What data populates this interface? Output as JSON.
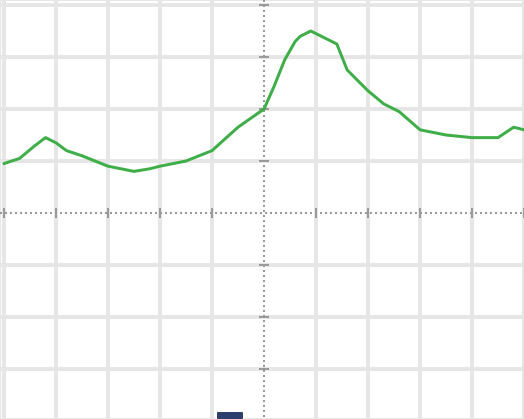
{
  "colors": {
    "background": "#ffffff",
    "grid": "#e6e6e6",
    "axis": "#9a9a9a",
    "trace": "#3fae49",
    "marker": "#2c3e6b"
  },
  "icons": {
    "bottom_marker": "marker-icon"
  },
  "chart_data": {
    "type": "line",
    "title": "",
    "xlabel": "",
    "ylabel": "",
    "xlim": [
      -5,
      5
    ],
    "ylim": [
      -4,
      4
    ],
    "grid": true,
    "x_grid_step": 1,
    "y_grid_step": 1,
    "minor_ticks_per_division": 5,
    "series": [
      {
        "x": [
          -5.0,
          -4.7,
          -4.4,
          -4.2,
          -4.0,
          -3.8,
          -3.5,
          -3.0,
          -2.5,
          -2.2,
          -2.0,
          -1.5,
          -1.0,
          -0.5,
          0.0,
          0.2,
          0.4,
          0.6,
          0.7,
          0.8,
          0.9,
          1.0,
          1.2,
          1.4,
          1.6,
          1.8,
          2.0,
          2.3,
          2.6,
          3.0,
          3.5,
          4.0,
          4.5,
          4.8,
          5.0
        ],
        "y": [
          0.95,
          1.05,
          1.3,
          1.45,
          1.35,
          1.2,
          1.1,
          0.9,
          0.8,
          0.85,
          0.9,
          1.0,
          1.2,
          1.65,
          2.0,
          2.45,
          2.95,
          3.3,
          3.4,
          3.45,
          3.5,
          3.45,
          3.35,
          3.25,
          2.75,
          2.55,
          2.35,
          2.1,
          1.95,
          1.6,
          1.5,
          1.45,
          1.45,
          1.65,
          1.6
        ]
      }
    ]
  }
}
